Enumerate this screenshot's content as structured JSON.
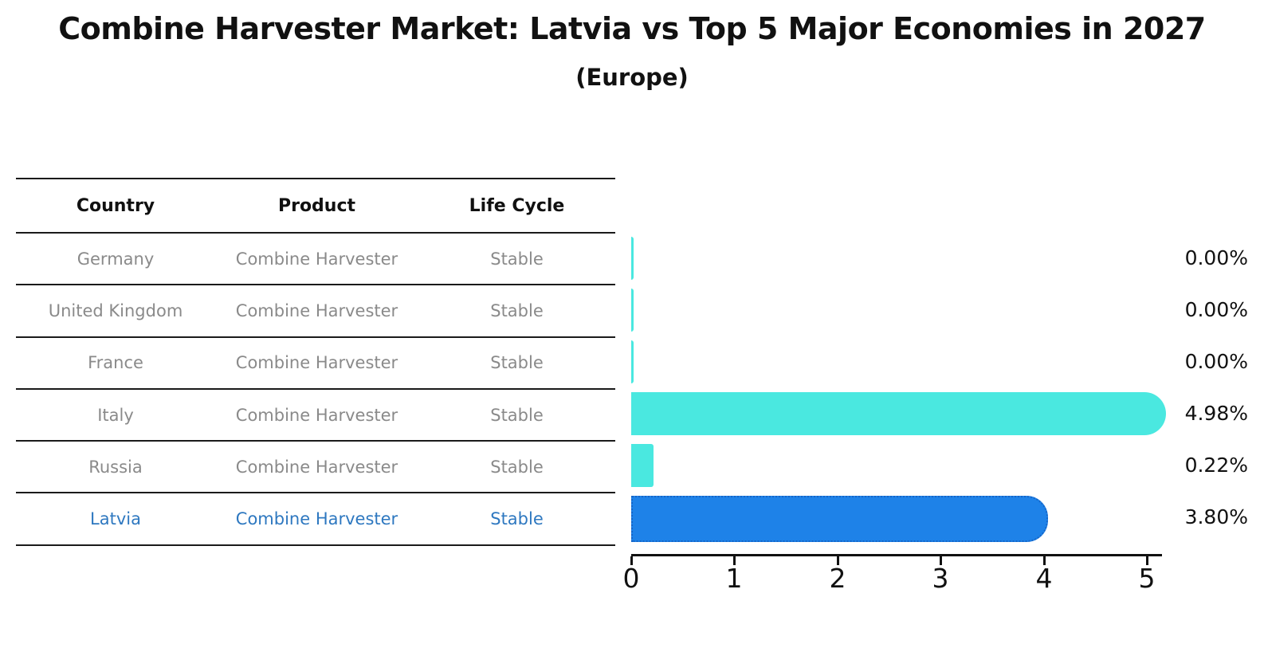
{
  "title": "Combine Harvester Market: Latvia vs Top 5 Major Economies in 2027",
  "subtitle": "(Europe)",
  "table": {
    "headers": {
      "country": "Country",
      "product": "Product",
      "life_cycle": "Life Cycle"
    },
    "rows": [
      {
        "country": "Germany",
        "product": "Combine Harvester",
        "life_cycle": "Stable",
        "highlight": false
      },
      {
        "country": "United Kingdom",
        "product": "Combine Harvester",
        "life_cycle": "Stable",
        "highlight": false
      },
      {
        "country": "France",
        "product": "Combine Harvester",
        "life_cycle": "Stable",
        "highlight": false
      },
      {
        "country": "Italy",
        "product": "Combine Harvester",
        "life_cycle": "Stable",
        "highlight": false
      },
      {
        "country": "Russia",
        "product": "Combine Harvester",
        "life_cycle": "Stable",
        "highlight": false
      },
      {
        "country": "Latvia",
        "product": "Combine Harvester",
        "life_cycle": "Stable",
        "highlight": true
      }
    ]
  },
  "chart_data": {
    "type": "bar",
    "orientation": "horizontal",
    "title": "Combine Harvester Market: Latvia vs Top 5 Major Economies in 2027",
    "subtitle": "(Europe)",
    "categories": [
      "Germany",
      "United Kingdom",
      "France",
      "Italy",
      "Russia",
      "Latvia"
    ],
    "values": [
      0.0,
      0.0,
      0.0,
      4.98,
      0.22,
      3.8
    ],
    "labels": [
      "0.00%",
      "0.00%",
      "0.00%",
      "4.98%",
      "0.22%",
      "3.80%"
    ],
    "highlight_index": 5,
    "xlim": [
      0,
      5
    ],
    "x_ticks": [
      "0",
      "1",
      "2",
      "3",
      "4",
      "5"
    ],
    "grid": false,
    "legend": false,
    "colors": {
      "bar": "#4ae8e0",
      "highlight_bar": "#1e82e8",
      "highlight_border": "#1565c8",
      "highlight_text": "#2e78c0",
      "text": "#111111",
      "muted_text": "#8a8a8a"
    }
  }
}
